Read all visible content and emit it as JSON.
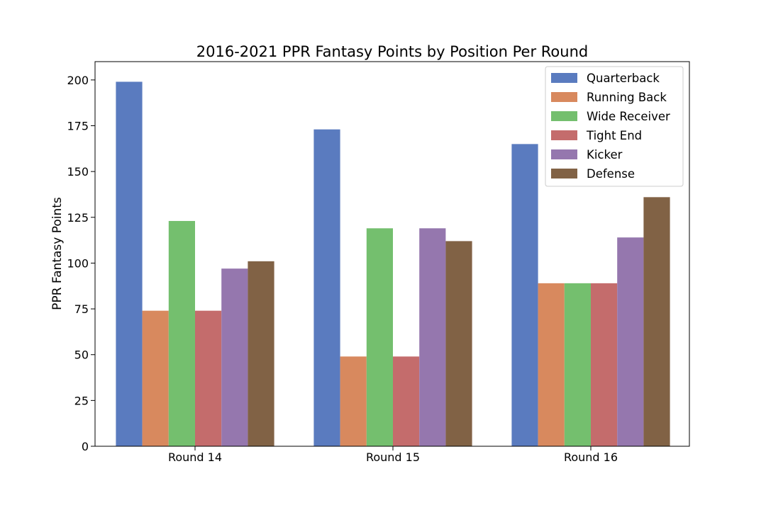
{
  "chart_data": {
    "type": "bar",
    "title": "2016-2021 PPR Fantasy Points by Position Per Round",
    "xlabel": "",
    "ylabel": "PPR Fantasy Points",
    "categories": [
      "Round 14",
      "Round 15",
      "Round 16"
    ],
    "ylim": [
      0,
      210
    ],
    "yticks": [
      0,
      25,
      50,
      75,
      100,
      125,
      150,
      175,
      200
    ],
    "legend_position": "top-right",
    "grid": false,
    "series": [
      {
        "name": "Quarterback",
        "color": "#5A7BBF",
        "values": [
          199,
          173,
          165
        ]
      },
      {
        "name": "Running Back",
        "color": "#D8895E",
        "values": [
          74,
          49,
          89
        ]
      },
      {
        "name": "Wide Receiver",
        "color": "#74BF6E",
        "values": [
          123,
          119,
          89
        ]
      },
      {
        "name": "Tight End",
        "color": "#C46C6C",
        "values": [
          74,
          49,
          89
        ]
      },
      {
        "name": "Kicker",
        "color": "#9577AE",
        "values": [
          97,
          119,
          114
        ]
      },
      {
        "name": "Defense",
        "color": "#816245",
        "values": [
          101,
          112,
          136
        ]
      }
    ]
  }
}
